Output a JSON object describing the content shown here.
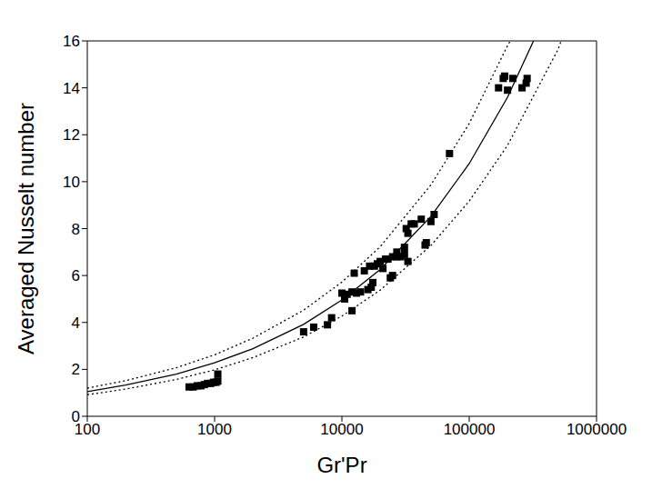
{
  "chart_data": {
    "type": "scatter",
    "x_label": "Gr'Pr",
    "y_label": "Averaged Nusselt number",
    "log": "x",
    "grid": false,
    "xlim": [
      100,
      1000000
    ],
    "xticks": [
      100,
      1000,
      10000,
      100000,
      1000000
    ],
    "ylim": [
      0,
      16
    ],
    "yticks": [
      0,
      2,
      4,
      6,
      8,
      10,
      12,
      14,
      16
    ],
    "series": [
      {
        "type": "scatter",
        "marker": "square",
        "color": "#000000",
        "x": [
          630,
          680,
          730,
          780,
          830,
          880,
          930,
          980,
          1030,
          1060,
          1060,
          5000,
          6000,
          7700,
          8300,
          10000,
          10500,
          11000,
          12000,
          12000,
          12500,
          13000,
          14000,
          15000,
          16000,
          16500,
          17000,
          17500,
          18000,
          19000,
          20000,
          21000,
          22000,
          23000,
          24000,
          25000,
          25000,
          27000,
          27000,
          29000,
          31000,
          31000,
          32000,
          33000,
          33000,
          35000,
          37000,
          42000,
          45000,
          46000,
          50000,
          53000,
          70000,
          170000,
          185000,
          190000,
          200000,
          220000,
          260000,
          280000,
          285000
        ],
        "values": [
          1.25,
          1.25,
          1.3,
          1.3,
          1.35,
          1.4,
          1.4,
          1.45,
          1.45,
          1.5,
          1.8,
          3.6,
          3.8,
          3.9,
          4.2,
          5.25,
          5.0,
          5.2,
          4.5,
          5.3,
          6.1,
          5.25,
          5.3,
          6.2,
          5.4,
          6.4,
          5.5,
          5.7,
          6.4,
          6.5,
          6.6,
          6.3,
          6.7,
          6.7,
          5.9,
          6.0,
          6.8,
          7.0,
          6.8,
          6.8,
          7.2,
          6.9,
          8.0,
          6.6,
          7.8,
          8.2,
          8.2,
          8.4,
          7.3,
          7.4,
          8.3,
          8.6,
          11.2,
          14.0,
          14.4,
          14.5,
          13.9,
          14.4,
          14.0,
          14.2,
          14.4
        ]
      },
      {
        "type": "line",
        "line_style": "solid",
        "color": "#000000",
        "x": [
          100,
          200,
          500,
          1000,
          2000,
          5000,
          10000,
          20000,
          50000,
          100000,
          200000,
          320000
        ],
        "values": [
          1.05,
          1.33,
          1.8,
          2.28,
          2.88,
          3.92,
          4.96,
          6.26,
          8.52,
          10.77,
          13.6,
          16.0
        ]
      },
      {
        "type": "line",
        "line_style": "dotted",
        "color": "#000000",
        "x": [
          100,
          200,
          500,
          1000,
          2000,
          5000,
          10000,
          20000,
          50000,
          100000,
          200000,
          210000
        ],
        "values": [
          1.2,
          1.52,
          2.07,
          2.62,
          3.33,
          4.52,
          5.72,
          7.23,
          9.86,
          12.48,
          15.8,
          16.0
        ]
      },
      {
        "type": "line",
        "line_style": "dotted",
        "color": "#000000",
        "x": [
          100,
          200,
          500,
          1000,
          2000,
          5000,
          10000,
          20000,
          50000,
          100000,
          200000,
          500000,
          527000
        ],
        "values": [
          0.92,
          1.16,
          1.57,
          1.98,
          2.5,
          3.38,
          4.27,
          5.38,
          7.28,
          9.17,
          11.55,
          15.65,
          16.0
        ]
      }
    ]
  }
}
